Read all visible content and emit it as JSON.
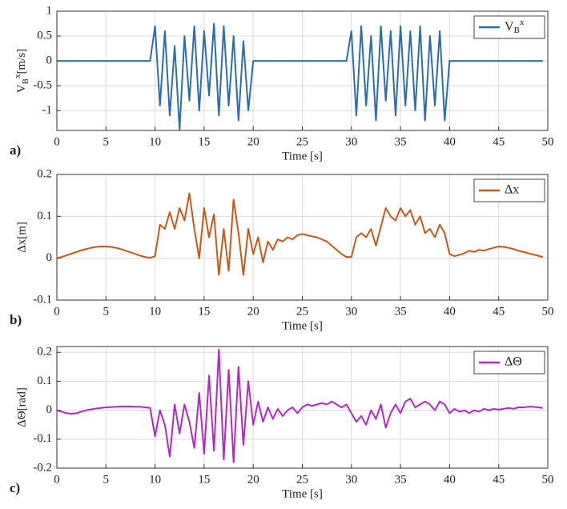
{
  "chart_data": [
    {
      "type": "line",
      "panel_label": "a)",
      "xlabel": "Time [s]",
      "ylabel": {
        "main": "V",
        "sub": "B",
        "sup": "x",
        "unit": "[m/s]"
      },
      "xlim": [
        0,
        50
      ],
      "xticks": [
        0,
        5,
        10,
        15,
        20,
        25,
        30,
        35,
        40,
        45,
        50
      ],
      "ylim": [
        -1.4,
        1
      ],
      "yticks": [
        -1,
        -0.5,
        0,
        0.5,
        1
      ],
      "grid": true,
      "legend": "upper right",
      "x": [
        0,
        0.5,
        1,
        1.5,
        2,
        2.5,
        3,
        3.5,
        4,
        4.5,
        5,
        5.5,
        6,
        6.5,
        7,
        7.5,
        8,
        8.5,
        9,
        9.5,
        10,
        10.5,
        11,
        11.5,
        12,
        12.5,
        13,
        13.5,
        14,
        14.5,
        15,
        15.5,
        16,
        16.5,
        17,
        17.5,
        18,
        18.5,
        19,
        19.5,
        20,
        20.5,
        21,
        21.5,
        22,
        22.5,
        23,
        23.5,
        24,
        24.5,
        25,
        25.5,
        26,
        26.5,
        27,
        27.5,
        28,
        28.5,
        29,
        29.5,
        30,
        30.5,
        31,
        31.5,
        32,
        32.5,
        33,
        33.5,
        34,
        34.5,
        35,
        35.5,
        36,
        36.5,
        37,
        37.5,
        38,
        38.5,
        39,
        39.5,
        40,
        40.5,
        41,
        41.5,
        42,
        42.5,
        43,
        43.5,
        44,
        44.5,
        45,
        45.5,
        46,
        46.5,
        47,
        47.5,
        48,
        48.5,
        49,
        49.5
      ],
      "series": [
        {
          "name": {
            "main": "V",
            "sub": "B",
            "sup": "x"
          },
          "color": "#2b6cb5",
          "values": [
            0,
            0,
            0,
            0,
            0,
            0,
            0,
            0,
            0,
            0,
            0,
            0,
            0,
            0,
            0,
            0,
            0,
            0,
            0,
            0,
            0.7,
            -0.9,
            0.6,
            -1.1,
            0.3,
            -1.38,
            0.5,
            -0.8,
            0.7,
            -1.0,
            0.6,
            -0.7,
            0.75,
            -1.1,
            0.7,
            -0.9,
            0.5,
            -1.2,
            0.4,
            -1.0,
            0,
            0,
            0,
            0,
            0,
            0,
            0,
            0,
            0,
            0,
            0,
            0,
            0,
            0,
            0,
            0,
            0,
            0,
            0,
            0,
            0.6,
            -1.1,
            0.7,
            -0.9,
            0.5,
            -1.2,
            0.7,
            -0.8,
            0.6,
            -1.1,
            0.7,
            -0.9,
            0.6,
            -1.0,
            0.7,
            -1.2,
            0.5,
            -0.9,
            0.6,
            -1.2,
            0,
            0,
            0,
            0,
            0,
            0,
            0,
            0,
            0,
            0,
            0,
            0,
            0,
            0,
            0,
            0,
            0,
            0,
            0,
            0
          ]
        }
      ]
    },
    {
      "type": "line",
      "panel_label": "b)",
      "xlabel": "Time [s]",
      "ylabel": "Δx[m]",
      "xlim": [
        0,
        50
      ],
      "xticks": [
        0,
        5,
        10,
        15,
        20,
        25,
        30,
        35,
        40,
        45,
        50
      ],
      "ylim": [
        -0.1,
        0.2
      ],
      "yticks": [
        -0.1,
        0,
        0.1,
        0.2
      ],
      "grid": true,
      "legend": "upper right",
      "x": [
        0,
        0.5,
        1,
        1.5,
        2,
        2.5,
        3,
        3.5,
        4,
        4.5,
        5,
        5.5,
        6,
        6.5,
        7,
        7.5,
        8,
        8.5,
        9,
        9.5,
        10,
        10.5,
        11,
        11.5,
        12,
        12.5,
        13,
        13.5,
        14,
        14.5,
        15,
        15.5,
        16,
        16.5,
        17,
        17.5,
        18,
        18.5,
        19,
        19.5,
        20,
        20.5,
        21,
        21.5,
        22,
        22.5,
        23,
        23.5,
        24,
        24.5,
        25,
        25.5,
        26,
        26.5,
        27,
        27.5,
        28,
        28.5,
        29,
        29.5,
        30,
        30.5,
        31,
        31.5,
        32,
        32.5,
        33,
        33.5,
        34,
        34.5,
        35,
        35.5,
        36,
        36.5,
        37,
        37.5,
        38,
        38.5,
        39,
        39.5,
        40,
        40.5,
        41,
        41.5,
        42,
        42.5,
        43,
        43.5,
        44,
        44.5,
        45,
        45.5,
        46,
        46.5,
        47,
        47.5,
        48,
        48.5,
        49,
        49.5
      ],
      "series": [
        {
          "name": "Δx",
          "color": "#c55a1a",
          "values": [
            0,
            0.003,
            0.007,
            0.011,
            0.015,
            0.019,
            0.022,
            0.025,
            0.027,
            0.028,
            0.028,
            0.027,
            0.025,
            0.022,
            0.018,
            0.014,
            0.01,
            0.006,
            0.003,
            0.001,
            0.005,
            0.08,
            0.07,
            0.11,
            0.07,
            0.12,
            0.09,
            0.155,
            0.07,
            0.0,
            0.12,
            0.05,
            0.105,
            -0.04,
            0.07,
            -0.03,
            0.14,
            0.06,
            -0.04,
            0.07,
            0.01,
            0.05,
            -0.01,
            0.04,
            0.02,
            0.045,
            0.04,
            0.05,
            0.045,
            0.055,
            0.058,
            0.055,
            0.052,
            0.05,
            0.045,
            0.04,
            0.03,
            0.02,
            0.01,
            0.003,
            0.003,
            0.05,
            0.06,
            0.05,
            0.07,
            0.03,
            0.075,
            0.12,
            0.1,
            0.09,
            0.12,
            0.1,
            0.115,
            0.08,
            0.1,
            0.06,
            0.07,
            0.05,
            0.08,
            0.06,
            0.01,
            0.005,
            0.008,
            0.012,
            0.018,
            0.015,
            0.02,
            0.018,
            0.022,
            0.025,
            0.028,
            0.027,
            0.025,
            0.022,
            0.018,
            0.015,
            0.012,
            0.009,
            0.006,
            0.003
          ]
        }
      ]
    },
    {
      "type": "line",
      "panel_label": "c)",
      "xlabel": "Time [s]",
      "ylabel": "ΔΘ[rad]",
      "xlim": [
        0,
        50
      ],
      "xticks": [
        0,
        5,
        10,
        15,
        20,
        25,
        30,
        35,
        40,
        45,
        50
      ],
      "ylim": [
        -0.2,
        0.22
      ],
      "yticks": [
        -0.2,
        -0.1,
        0,
        0.1,
        0.2
      ],
      "grid": true,
      "legend": "upper right",
      "x": [
        0,
        0.5,
        1,
        1.5,
        2,
        2.5,
        3,
        3.5,
        4,
        4.5,
        5,
        5.5,
        6,
        6.5,
        7,
        7.5,
        8,
        8.5,
        9,
        9.5,
        10,
        10.5,
        11,
        11.5,
        12,
        12.5,
        13,
        13.5,
        14,
        14.5,
        15,
        15.5,
        16,
        16.5,
        17,
        17.5,
        18,
        18.5,
        19,
        19.5,
        20,
        20.5,
        21,
        21.5,
        22,
        22.5,
        23,
        23.5,
        24,
        24.5,
        25,
        25.5,
        26,
        26.5,
        27,
        27.5,
        28,
        28.5,
        29,
        29.5,
        30,
        30.5,
        31,
        31.5,
        32,
        32.5,
        33,
        33.5,
        34,
        34.5,
        35,
        35.5,
        36,
        36.5,
        37,
        37.5,
        38,
        38.5,
        39,
        39.5,
        40,
        40.5,
        41,
        41.5,
        42,
        42.5,
        43,
        43.5,
        44,
        44.5,
        45,
        45.5,
        46,
        46.5,
        47,
        47.5,
        48,
        48.5,
        49,
        49.5
      ],
      "series": [
        {
          "name": "ΔΘ",
          "color": "#b02ac6",
          "values": [
            0,
            -0.005,
            -0.01,
            -0.012,
            -0.01,
            -0.005,
            0,
            0.003,
            0.006,
            0.008,
            0.01,
            0.011,
            0.012,
            0.013,
            0.013,
            0.013,
            0.012,
            0.012,
            0.01,
            0.008,
            -0.09,
            0.0,
            -0.05,
            -0.16,
            0.02,
            -0.08,
            0.02,
            -0.04,
            -0.13,
            0.06,
            -0.15,
            0.12,
            -0.14,
            0.21,
            -0.17,
            0.14,
            -0.18,
            0.15,
            -0.12,
            0.1,
            -0.05,
            0.03,
            -0.04,
            0.01,
            -0.03,
            0.005,
            -0.02,
            0.0,
            0.01,
            -0.01,
            0.01,
            0.02,
            0.015,
            0.02,
            0.025,
            0.02,
            0.03,
            0.02,
            0.01,
            0.02,
            -0.01,
            -0.04,
            -0.02,
            -0.05,
            0.0,
            -0.03,
            0.02,
            -0.06,
            -0.01,
            0.02,
            -0.01,
            0.03,
            0.04,
            0.01,
            0.02,
            0.03,
            0.02,
            0.0,
            0.03,
            0.02,
            -0.01,
            0.005,
            -0.005,
            0.0,
            -0.01,
            0.0,
            -0.005,
            0.005,
            0.0,
            0.005,
            0.002,
            0.005,
            0.008,
            0.005,
            0.01,
            0.01,
            0.012,
            0.012,
            0.01,
            0.008
          ]
        }
      ]
    }
  ]
}
